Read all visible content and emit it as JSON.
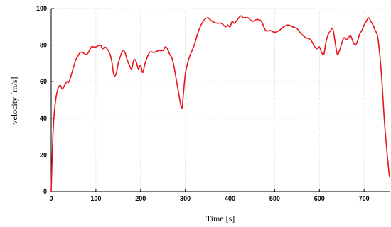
{
  "chart_data": {
    "type": "line",
    "title": "",
    "xlabel": "Time [s]",
    "ylabel": "velocity [m/s]",
    "xlim": [
      0,
      757
    ],
    "ylim": [
      0,
      100
    ],
    "xticks": [
      0,
      100,
      200,
      300,
      400,
      500,
      600,
      700
    ],
    "yticks": [
      0,
      20,
      40,
      60,
      80,
      100
    ],
    "grid": true,
    "line_color": "#e8141b",
    "series": [
      {
        "name": "",
        "x": [
          0,
          3,
          6,
          10,
          15,
          20,
          25,
          30,
          35,
          40,
          50,
          55,
          60,
          65,
          70,
          80,
          90,
          95,
          100,
          110,
          115,
          120,
          125,
          130,
          135,
          140,
          145,
          150,
          155,
          160,
          165,
          170,
          175,
          180,
          185,
          190,
          195,
          200,
          205,
          210,
          220,
          230,
          240,
          250,
          255,
          260,
          265,
          270,
          275,
          280,
          285,
          290,
          293,
          296,
          300,
          305,
          310,
          320,
          330,
          340,
          350,
          355,
          360,
          370,
          380,
          390,
          395,
          400,
          405,
          410,
          420,
          425,
          430,
          440,
          450,
          460,
          470,
          480,
          490,
          500,
          510,
          520,
          530,
          540,
          550,
          560,
          570,
          580,
          590,
          595,
          600,
          605,
          610,
          615,
          620,
          625,
          630,
          635,
          640,
          645,
          650,
          655,
          660,
          665,
          670,
          675,
          680,
          685,
          690,
          695,
          700,
          705,
          710,
          715,
          720,
          725,
          730,
          735,
          740,
          745,
          750,
          755,
          757
        ],
        "y": [
          0,
          25,
          40,
          50,
          56,
          58,
          56,
          58,
          60,
          60,
          68,
          72,
          74,
          76,
          76,
          75,
          79,
          79,
          79,
          80,
          78,
          79,
          78,
          76,
          72,
          64,
          64,
          70,
          74,
          77,
          76,
          72,
          69,
          67,
          72,
          71,
          67,
          69,
          65,
          70,
          76,
          76,
          77,
          77,
          79,
          78,
          75,
          73,
          68,
          61,
          54,
          47,
          46,
          54,
          64,
          70,
          74,
          80,
          88,
          93,
          95,
          94,
          93,
          92,
          92,
          90,
          91,
          90,
          93,
          92,
          95,
          96,
          95,
          95,
          93,
          94,
          93,
          88,
          88,
          87,
          88,
          90,
          91,
          90,
          89,
          86,
          84,
          83,
          79,
          78,
          79,
          76,
          75,
          82,
          86,
          88,
          89,
          82,
          75,
          77,
          81,
          84,
          83,
          84,
          85,
          82,
          80,
          82,
          86,
          88,
          91,
          93,
          95,
          93,
          91,
          88,
          85,
          75,
          60,
          40,
          25,
          12,
          8
        ]
      }
    ]
  }
}
